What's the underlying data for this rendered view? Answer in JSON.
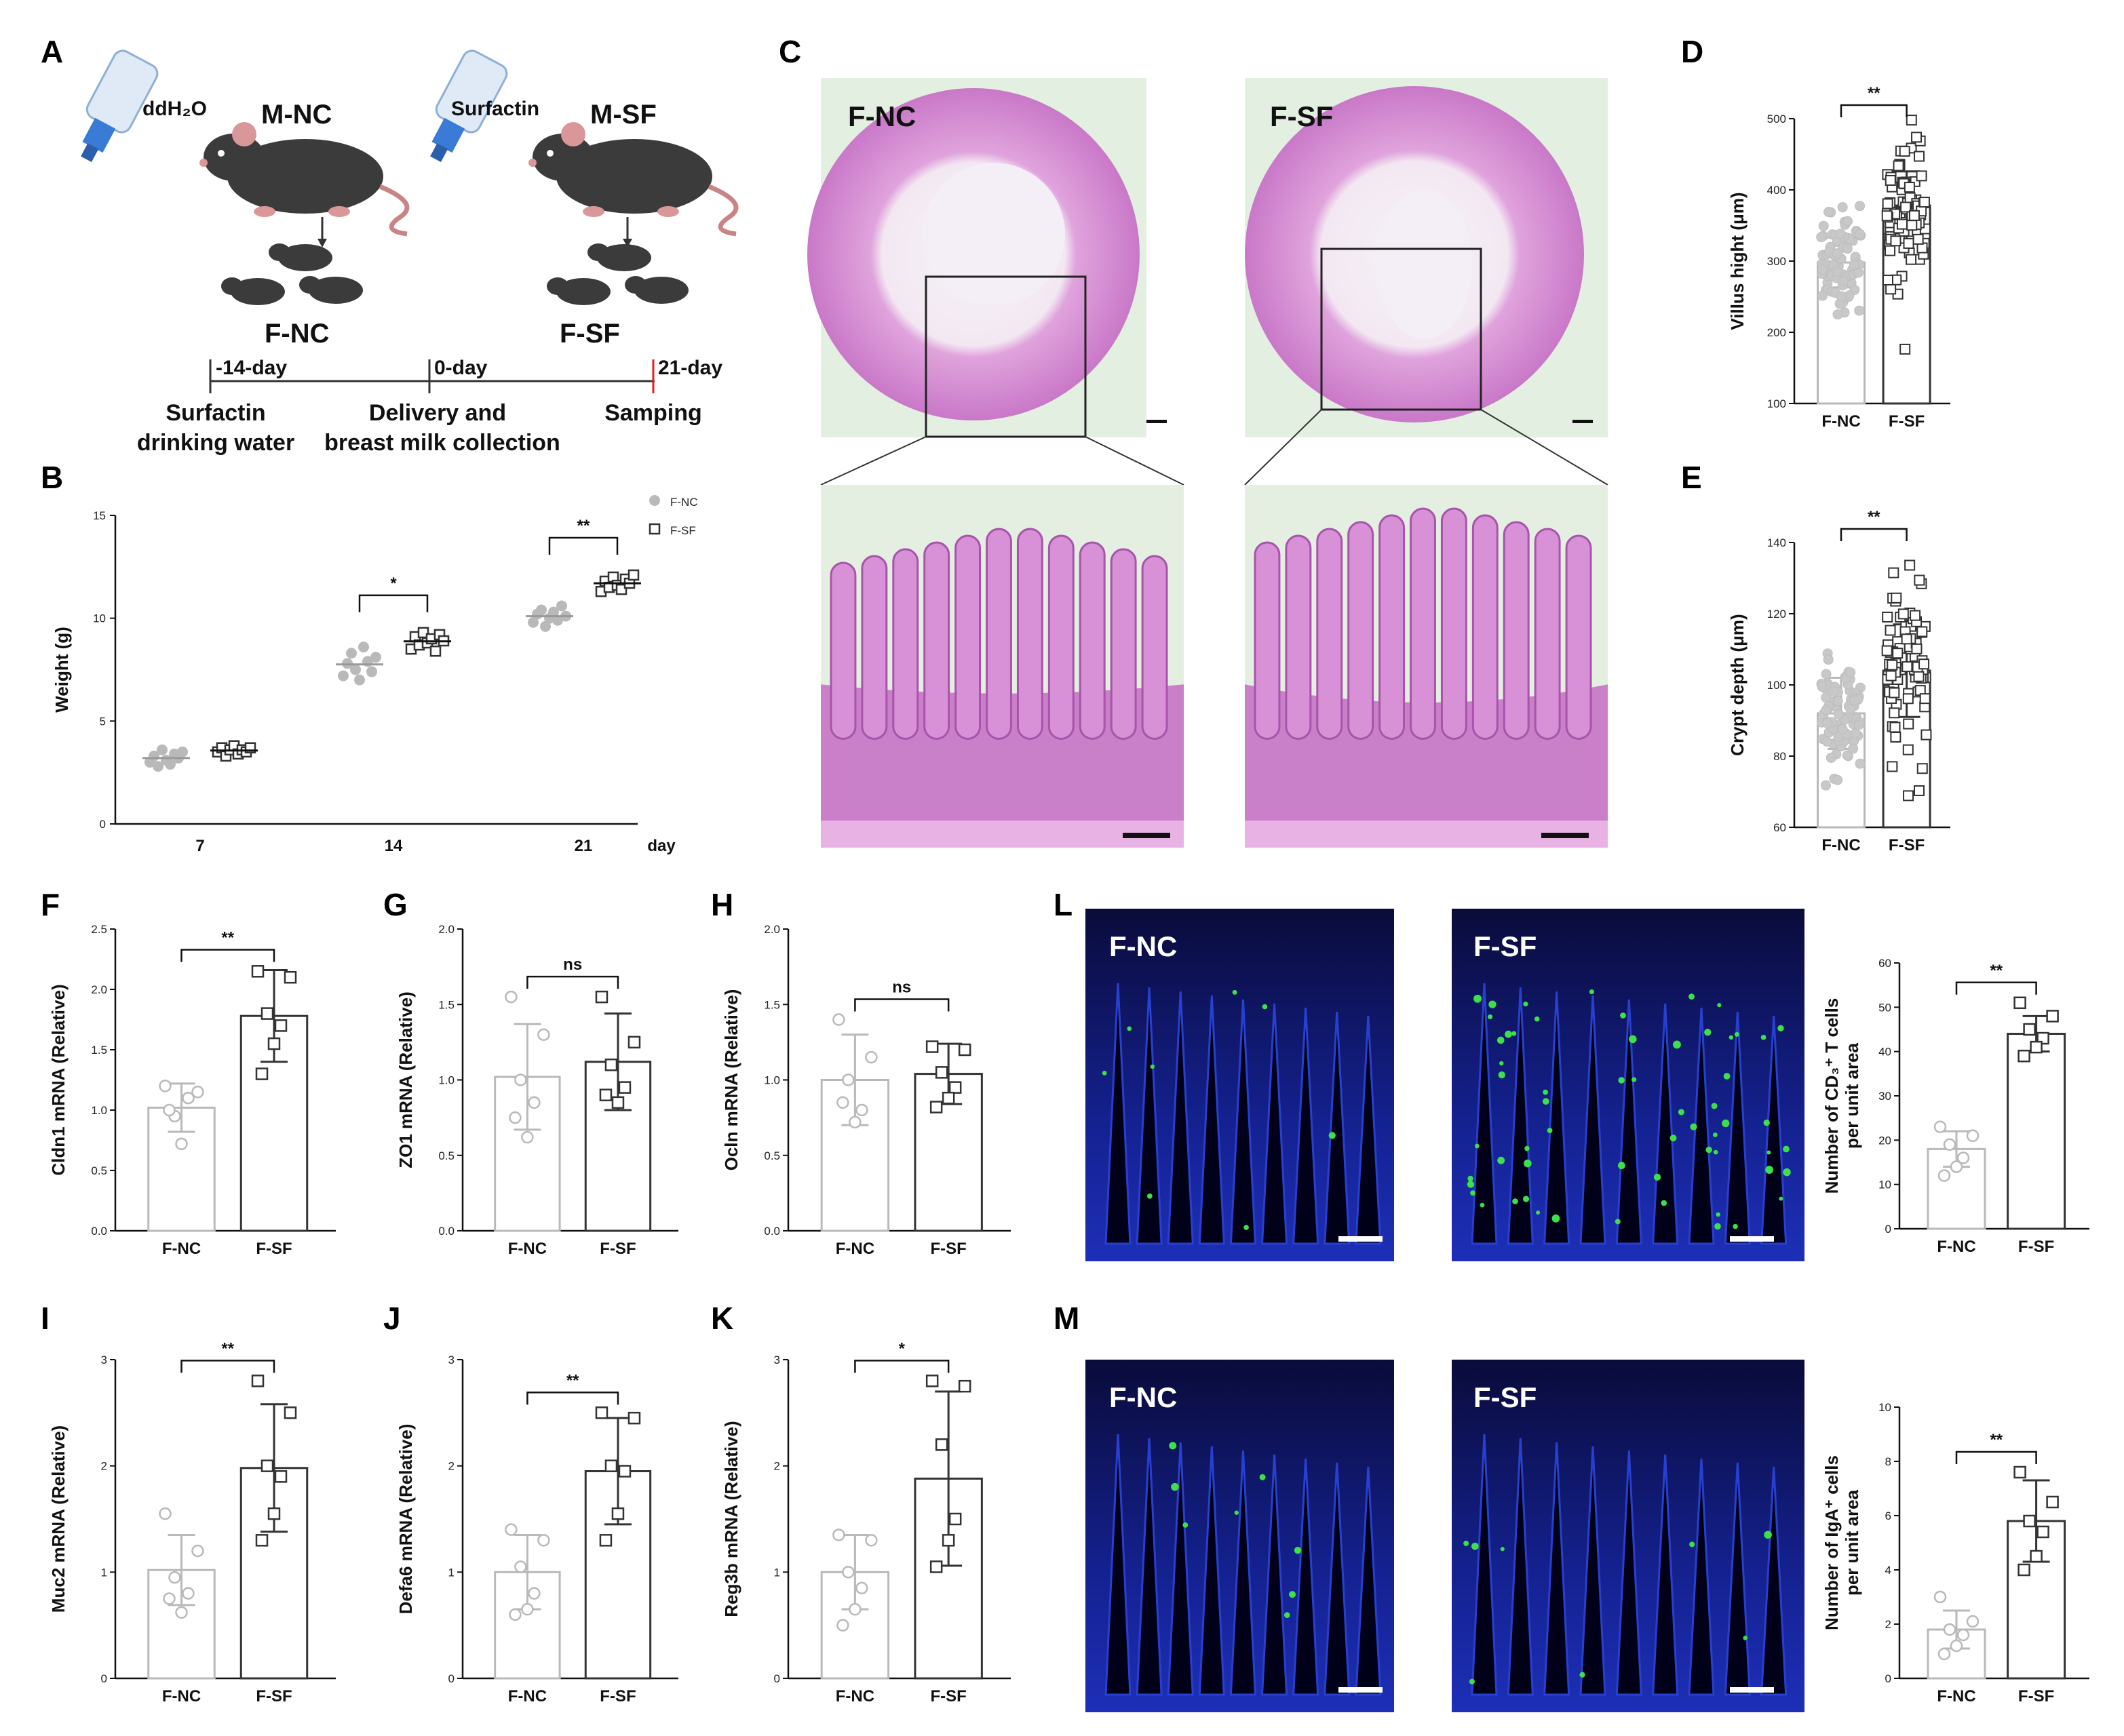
{
  "panel_letters": [
    "A",
    "B",
    "C",
    "D",
    "E",
    "F",
    "G",
    "H",
    "I",
    "J",
    "K",
    "L",
    "M"
  ],
  "schematic": {
    "bottle_left": "ddH₂O",
    "bottle_right": "Surfactin",
    "mouse_left": "M-NC",
    "mouse_right": "M-SF",
    "pups_left": "F-NC",
    "pups_right": "F-SF",
    "timeline": [
      "-14-day",
      "0-day",
      "21-day"
    ],
    "timeline_highlight": "#e0221c",
    "step1_a": "Surfactin",
    "step1_b": "drinking water",
    "step2_a": "Delivery and",
    "step2_b": "breast milk collection",
    "step3": "Samping"
  },
  "histology": {
    "labels": [
      "F-NC",
      "F-SF"
    ]
  },
  "fluorescence": {
    "labels_L": [
      "F-NC",
      "F-SF"
    ],
    "labels_M": [
      "F-NC",
      "F-SF"
    ]
  },
  "colors": {
    "nc": "#b9b9b9",
    "sf": "#333333",
    "he_bg": "#e3efe0",
    "he_tissue": "#d88bd4",
    "he_dark": "#b35cb5",
    "he_lumen": "#f6f2f7",
    "fluor_bg": "#050512",
    "fluor_blue": "#1d2fb8",
    "fluor_green": "#3ce04a"
  },
  "chart_data": [
    {
      "id": "B",
      "type": "scatter",
      "ylabel": "Weight (g)",
      "xlabel": "day",
      "ylim": [
        0,
        15
      ],
      "yticks": [
        0,
        5,
        10,
        15
      ],
      "categories": [
        "7",
        "14",
        "21"
      ],
      "legend_position": "top-right",
      "series": [
        {
          "name": "F-NC",
          "values": [
            [
              3.0,
              3.3,
              2.8,
              3.6,
              3.1,
              2.9,
              3.4,
              3.2,
              3.5
            ],
            [
              7.2,
              7.8,
              8.3,
              7.5,
              7.0,
              8.6,
              7.9,
              7.4,
              8.1
            ],
            [
              9.8,
              10.2,
              10.4,
              9.6,
              10.0,
              10.3,
              9.9,
              10.6,
              10.1
            ]
          ]
        },
        {
          "name": "F-SF",
          "values": [
            [
              3.5,
              3.7,
              3.3,
              3.6,
              3.8,
              3.4,
              3.6,
              3.5,
              3.7
            ],
            [
              8.5,
              9.1,
              8.7,
              9.3,
              8.8,
              9.0,
              8.4,
              9.2,
              8.9
            ],
            [
              11.3,
              11.8,
              11.5,
              12.0,
              11.6,
              11.4,
              11.9,
              11.7,
              12.1
            ]
          ]
        }
      ],
      "significance": [
        "",
        "*",
        "**"
      ]
    },
    {
      "id": "D",
      "type": "bar",
      "ylabel": "Villus hight (μm)",
      "ylim": [
        100,
        500
      ],
      "yticks": [
        100,
        200,
        300,
        400,
        500
      ],
      "categories": [
        "F-NC",
        "F-SF"
      ],
      "values": [
        298,
        378
      ],
      "sd": [
        35,
        48
      ],
      "n_points": 80,
      "significance": "**"
    },
    {
      "id": "E",
      "type": "bar",
      "ylabel": "Crypt depth (μm)",
      "ylim": [
        60,
        140
      ],
      "yticks": [
        60,
        80,
        100,
        120,
        140
      ],
      "categories": [
        "F-NC",
        "F-SF"
      ],
      "values": [
        92,
        104
      ],
      "sd": [
        10,
        13
      ],
      "n_points": 80,
      "significance": "**"
    },
    {
      "id": "F",
      "type": "bar",
      "ylabel": "Cldn1 mRNA (Relative)",
      "ylim": [
        0,
        2.5
      ],
      "yticks": [
        0.0,
        0.5,
        1.0,
        1.5,
        2.0,
        2.5
      ],
      "categories": [
        "F-NC",
        "F-SF"
      ],
      "values": [
        1.02,
        1.78
      ],
      "sd": [
        0.2,
        0.38
      ],
      "points": [
        [
          1.2,
          1.15,
          0.95,
          1.1,
          0.72,
          1.0
        ],
        [
          2.15,
          2.1,
          1.8,
          1.7,
          1.55,
          1.3
        ]
      ],
      "significance": "**"
    },
    {
      "id": "G",
      "type": "bar",
      "ylabel": "ZO1 mRNA (Relative)",
      "ylim": [
        0,
        2.0
      ],
      "yticks": [
        0.0,
        0.5,
        1.0,
        1.5,
        2.0
      ],
      "categories": [
        "F-NC",
        "F-SF"
      ],
      "values": [
        1.02,
        1.12
      ],
      "sd": [
        0.35,
        0.32
      ],
      "points": [
        [
          1.55,
          1.3,
          1.0,
          0.85,
          0.62,
          0.75
        ],
        [
          1.55,
          1.25,
          1.1,
          0.95,
          0.85,
          0.9
        ]
      ],
      "significance": "ns"
    },
    {
      "id": "H",
      "type": "bar",
      "ylabel": "Ocln mRNA (Relative)",
      "ylim": [
        0,
        2.0
      ],
      "yticks": [
        0.0,
        0.5,
        1.0,
        1.5,
        2.0
      ],
      "categories": [
        "F-NC",
        "F-SF"
      ],
      "values": [
        1.0,
        1.04
      ],
      "sd": [
        0.3,
        0.2
      ],
      "points": [
        [
          1.4,
          1.15,
          1.0,
          0.8,
          0.72,
          0.85
        ],
        [
          1.22,
          1.2,
          1.05,
          0.95,
          0.88,
          0.82
        ]
      ],
      "significance": "ns"
    },
    {
      "id": "L",
      "type": "bar",
      "ylabel": "Number of CD₃⁺ T cells",
      "ylabel2": "per unit area",
      "ylim": [
        0,
        60
      ],
      "yticks": [
        0,
        10,
        20,
        30,
        40,
        50,
        60
      ],
      "categories": [
        "F-NC",
        "F-SF"
      ],
      "values": [
        18,
        44
      ],
      "sd": [
        4,
        4
      ],
      "points": [
        [
          23,
          21,
          19,
          16,
          14,
          12
        ],
        [
          51,
          48,
          45,
          43,
          41,
          39
        ]
      ],
      "significance": "**"
    },
    {
      "id": "I",
      "type": "bar",
      "ylabel": "Muc2 mRNA (Relative)",
      "ylim": [
        0,
        3
      ],
      "yticks": [
        0,
        1,
        2,
        3
      ],
      "categories": [
        "F-NC",
        "F-SF"
      ],
      "values": [
        1.02,
        1.98
      ],
      "sd": [
        0.33,
        0.6
      ],
      "points": [
        [
          1.55,
          1.2,
          0.95,
          0.8,
          0.62,
          0.75
        ],
        [
          2.8,
          2.5,
          2.0,
          1.9,
          1.55,
          1.3
        ]
      ],
      "significance": "**"
    },
    {
      "id": "J",
      "type": "bar",
      "ylabel": "Defa6 mRNA (Relative)",
      "ylim": [
        0,
        3
      ],
      "yticks": [
        0,
        1,
        2,
        3
      ],
      "categories": [
        "F-NC",
        "F-SF"
      ],
      "values": [
        1.0,
        1.95
      ],
      "sd": [
        0.35,
        0.5
      ],
      "points": [
        [
          1.4,
          1.3,
          1.05,
          0.8,
          0.65,
          0.6
        ],
        [
          2.5,
          2.45,
          2.0,
          1.95,
          1.55,
          1.3
        ]
      ],
      "significance": "**"
    },
    {
      "id": "K",
      "type": "bar",
      "ylabel": "Reg3b mRNA (Relative)",
      "ylim": [
        0,
        3
      ],
      "yticks": [
        0,
        1,
        2,
        3
      ],
      "categories": [
        "F-NC",
        "F-SF"
      ],
      "values": [
        1.0,
        1.88
      ],
      "sd": [
        0.35,
        0.82
      ],
      "points": [
        [
          1.35,
          1.3,
          1.0,
          0.85,
          0.65,
          0.5
        ],
        [
          2.8,
          2.75,
          2.2,
          1.5,
          1.3,
          1.05
        ]
      ],
      "significance": "*"
    },
    {
      "id": "M",
      "type": "bar",
      "ylabel": "Number of IgA⁺ cells",
      "ylabel2": "per unit area",
      "ylim": [
        0,
        10
      ],
      "yticks": [
        0,
        2,
        4,
        6,
        8,
        10
      ],
      "categories": [
        "F-NC",
        "F-SF"
      ],
      "values": [
        1.8,
        5.8
      ],
      "sd": [
        0.7,
        1.5
      ],
      "points": [
        [
          3.0,
          2.1,
          1.8,
          1.6,
          1.2,
          0.9
        ],
        [
          7.6,
          6.5,
          5.8,
          5.4,
          4.5,
          4.0
        ]
      ],
      "significance": "**"
    }
  ]
}
